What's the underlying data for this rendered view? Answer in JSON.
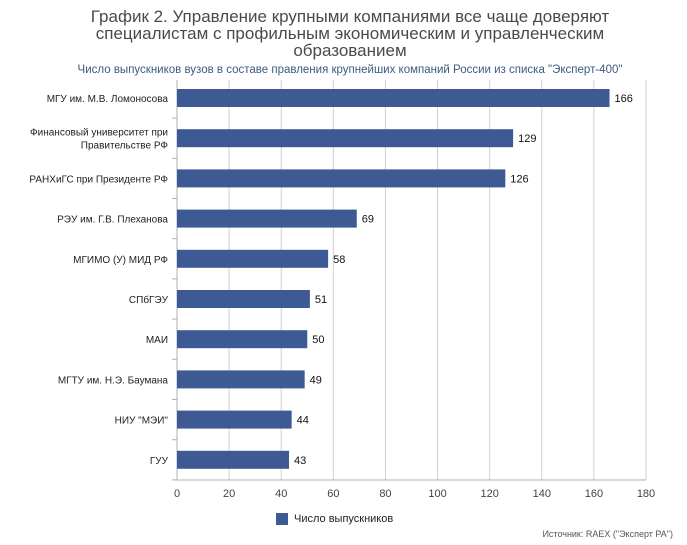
{
  "chart_data": {
    "type": "bar",
    "orientation": "horizontal",
    "title": "График 2. Управление крупными компаниями все чаще доверяют специалистам с профильным экономическим и управленческим образованием",
    "subtitle": "Число выпускников вузов в составе правления крупнейших компаний России из списка \"Эксперт-400\"",
    "categories": [
      [
        "МГУ им. М.В. Ломоносова"
      ],
      [
        "Финансовый университет при",
        "Правительстве РФ"
      ],
      [
        "РАНХиГС при Президенте РФ"
      ],
      [
        "РЭУ им. Г.В. Плеханова"
      ],
      [
        "МГИМО (У) МИД РФ"
      ],
      [
        "СПбГЭУ"
      ],
      [
        "МАИ"
      ],
      [
        "МГТУ им. Н.Э. Баумана"
      ],
      [
        "НИУ \"МЭИ\""
      ],
      [
        "ГУУ"
      ]
    ],
    "series": [
      {
        "name": "Число выпускников",
        "values": [
          166,
          129,
          126,
          69,
          58,
          51,
          50,
          49,
          44,
          43
        ]
      }
    ],
    "xlim": [
      0,
      180
    ],
    "xticks": [
      0,
      20,
      40,
      60,
      80,
      100,
      120,
      140,
      160,
      180
    ],
    "grid": true,
    "legend_position": "bottom",
    "bar_color": "#3e5a94",
    "source": "Источник: RAEX (\"Эксперт РА\")"
  }
}
